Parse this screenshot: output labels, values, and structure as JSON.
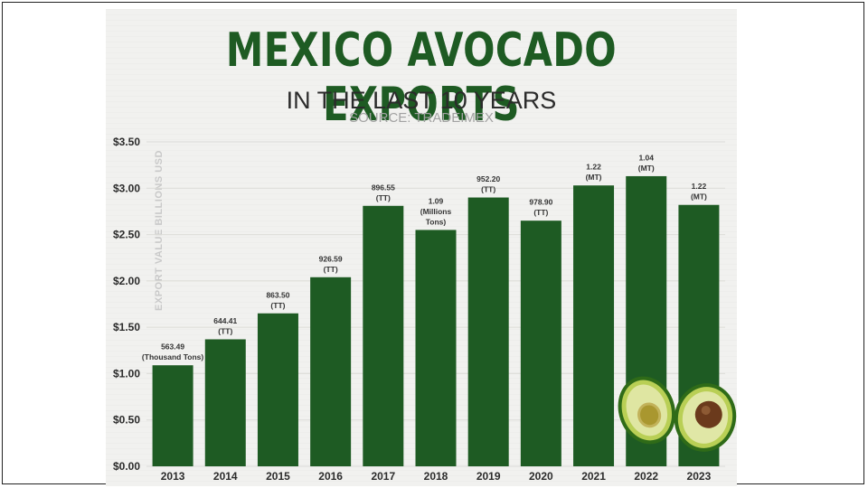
{
  "chart_data": {
    "type": "bar",
    "title": "MEXICO AVOCADO EXPORTS",
    "subtitle": "IN THE LAST 10 YEARS",
    "source": "SOURCE: TRADEIMEX",
    "ylabel": "EXPORT VALUE BILLIONS USD",
    "ylim": [
      0,
      3.5
    ],
    "yticks": [
      0,
      0.5,
      1.0,
      1.5,
      2.0,
      2.5,
      3.0,
      3.5
    ],
    "ytick_labels": [
      "$0.00",
      "$0.50",
      "$1.00",
      "$1.50",
      "$2.00",
      "$2.50",
      "$3.00",
      "$3.50"
    ],
    "grid": true,
    "categories": [
      "2013",
      "2014",
      "2015",
      "2016",
      "2017",
      "2018",
      "2019",
      "2020",
      "2021",
      "2022",
      "2023"
    ],
    "values": [
      1.09,
      1.37,
      1.65,
      2.04,
      2.81,
      2.55,
      2.9,
      2.65,
      3.03,
      3.13,
      2.82
    ],
    "bar_labels": [
      [
        "563.49",
        "(Thousand Tons)"
      ],
      [
        "644.41",
        "(TT)"
      ],
      [
        "863.50",
        "(TT)"
      ],
      [
        "926.59",
        "(TT)"
      ],
      [
        "896.55",
        "(TT)"
      ],
      [
        "1.09",
        "(Millions",
        "Tons)"
      ],
      [
        "952.20",
        "(TT)"
      ],
      [
        "978.90",
        "(TT)"
      ],
      [
        "1.22",
        "(MT)"
      ],
      [
        "1.04",
        "(MT)"
      ],
      [
        "1.22",
        "(MT)"
      ]
    ],
    "colors": {
      "bar": "#1e5b23",
      "title": "#1e5b23",
      "grid": "#dcdcd8",
      "axis_text": "#2b2b2b"
    }
  },
  "decor": {
    "image_icon": "avocado-halves"
  }
}
